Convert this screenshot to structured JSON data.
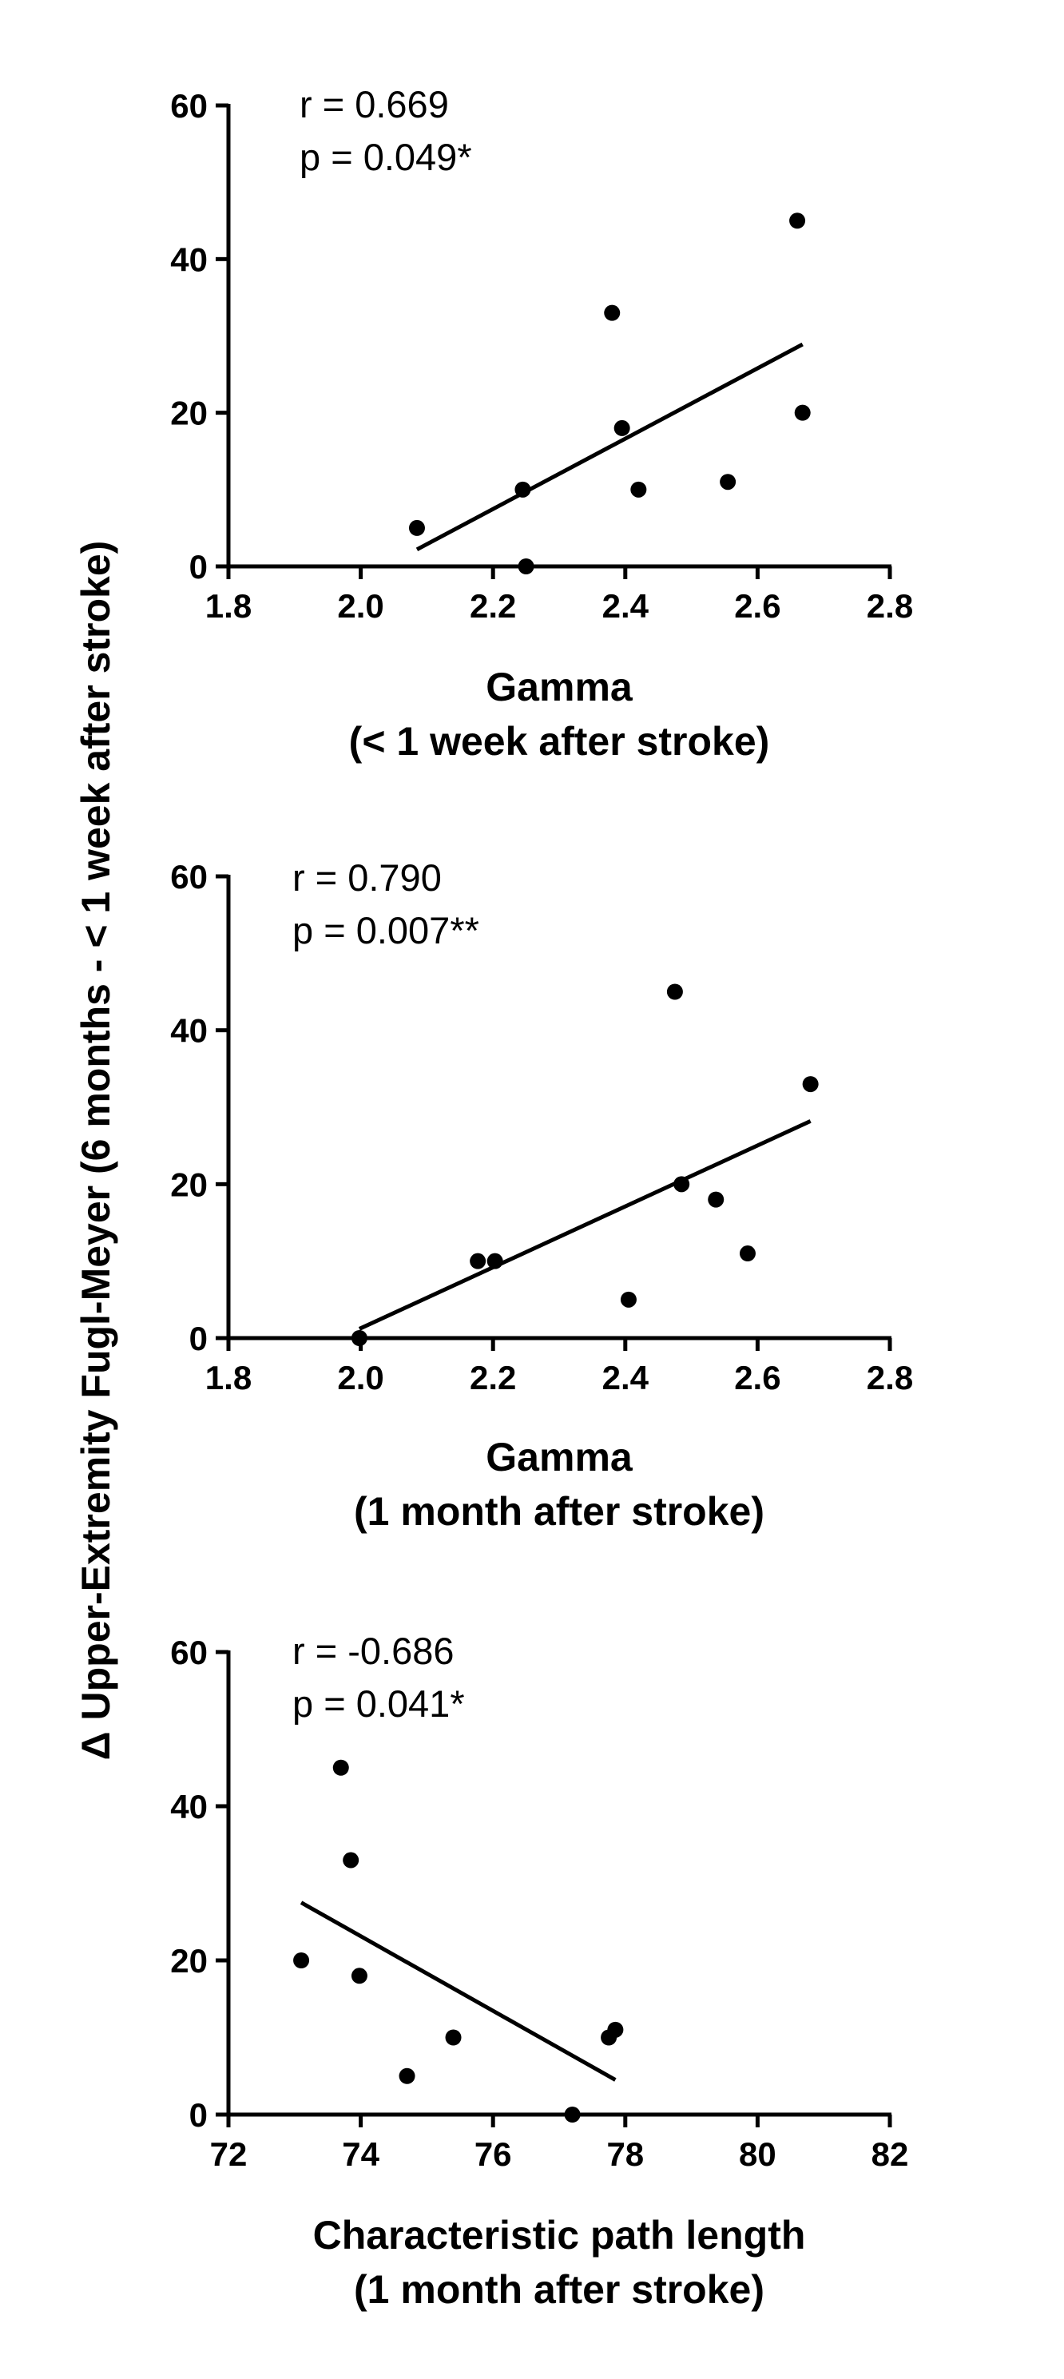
{
  "ylabel": "Δ  Upper-Extremity Fugl-Meyer (6 months - < 1 week after stroke)",
  "chart_data": [
    {
      "type": "scatter",
      "xlabel": [
        "Gamma",
        "(< 1 week after stroke)"
      ],
      "annotations": [
        "r = 0.669",
        "p = 0.049*"
      ],
      "xlim": [
        1.8,
        2.8
      ],
      "ylim": [
        0,
        60
      ],
      "xticks": [
        "1.8",
        "2.0",
        "2.2",
        "2.4",
        "2.6",
        "2.8"
      ],
      "yticks": [
        "0",
        "20",
        "40",
        "60"
      ],
      "grid": false,
      "points": [
        {
          "x": 2.085,
          "y": 5
        },
        {
          "x": 2.245,
          "y": 10
        },
        {
          "x": 2.25,
          "y": 0
        },
        {
          "x": 2.38,
          "y": 33
        },
        {
          "x": 2.395,
          "y": 18
        },
        {
          "x": 2.42,
          "y": 10
        },
        {
          "x": 2.555,
          "y": 11
        },
        {
          "x": 2.66,
          "y": 45
        },
        {
          "x": 2.668,
          "y": 20
        }
      ],
      "fit_line": [
        {
          "x": 2.085,
          "y": 2.2
        },
        {
          "x": 2.668,
          "y": 28.9
        }
      ]
    },
    {
      "type": "scatter",
      "xlabel": [
        "Gamma",
        "(1 month after stroke)"
      ],
      "annotations": [
        "r = 0.790",
        "p = 0.007**"
      ],
      "xlim": [
        1.8,
        2.8
      ],
      "ylim": [
        0,
        60
      ],
      "xticks": [
        "1.8",
        "2.0",
        "2.2",
        "2.4",
        "2.6",
        "2.8"
      ],
      "yticks": [
        "0",
        "20",
        "40",
        "60"
      ],
      "grid": false,
      "points": [
        {
          "x": 1.998,
          "y": 0
        },
        {
          "x": 2.177,
          "y": 10
        },
        {
          "x": 2.203,
          "y": 10
        },
        {
          "x": 2.405,
          "y": 5
        },
        {
          "x": 2.475,
          "y": 45
        },
        {
          "x": 2.485,
          "y": 20
        },
        {
          "x": 2.537,
          "y": 18
        },
        {
          "x": 2.585,
          "y": 11
        },
        {
          "x": 2.68,
          "y": 33
        }
      ],
      "fit_line": [
        {
          "x": 1.998,
          "y": 1.2
        },
        {
          "x": 2.68,
          "y": 28.2
        }
      ]
    },
    {
      "type": "scatter",
      "xlabel": [
        "Characteristic path length",
        "(1 month after stroke)"
      ],
      "annotations": [
        "r = -0.686",
        "p = 0.041*"
      ],
      "xlim": [
        72,
        82
      ],
      "ylim": [
        0,
        60
      ],
      "xticks": [
        "72",
        "74",
        "76",
        "78",
        "80",
        "82"
      ],
      "yticks": [
        "0",
        "20",
        "40",
        "60"
      ],
      "grid": false,
      "points": [
        {
          "x": 73.1,
          "y": 20
        },
        {
          "x": 73.7,
          "y": 45
        },
        {
          "x": 73.85,
          "y": 33
        },
        {
          "x": 73.98,
          "y": 18
        },
        {
          "x": 74.7,
          "y": 5
        },
        {
          "x": 75.4,
          "y": 10
        },
        {
          "x": 77.2,
          "y": 0
        },
        {
          "x": 77.75,
          "y": 10
        },
        {
          "x": 77.85,
          "y": 11
        }
      ],
      "fit_line": [
        {
          "x": 73.1,
          "y": 27.5
        },
        {
          "x": 77.85,
          "y": 4.5
        }
      ]
    }
  ]
}
